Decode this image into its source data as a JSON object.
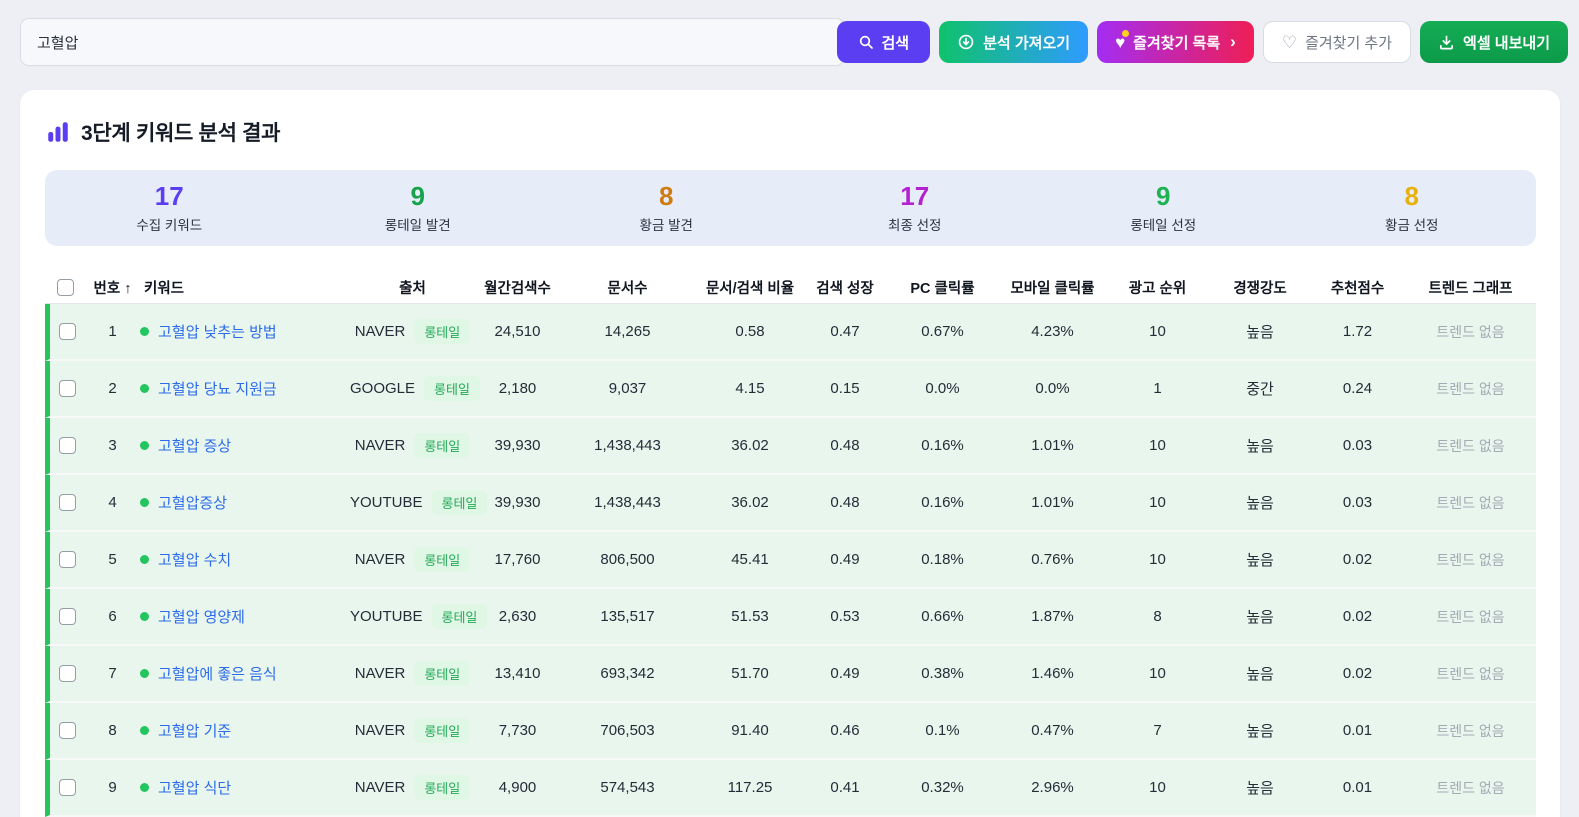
{
  "search": {
    "value": "고혈압"
  },
  "toolbar": {
    "search_label": "검색",
    "import_label": "분석 가져오기",
    "favorites_list_label": "즐겨찾기 목록",
    "favorites_list_chevron": "›",
    "favorites_add_label": "즐겨찾기 추가",
    "excel_label": "엑셀 내보내기"
  },
  "results": {
    "title": "3단계 키워드 분석 결과",
    "stats": [
      {
        "value": "17",
        "label": "수집 키워드",
        "color": "#5b3df2"
      },
      {
        "value": "9",
        "label": "롱테일 발견",
        "color": "#16a34a"
      },
      {
        "value": "8",
        "label": "황금 발견",
        "color": "#d07b12"
      },
      {
        "value": "17",
        "label": "최종 선정",
        "color": "#b321d1"
      },
      {
        "value": "9",
        "label": "롱테일 선정",
        "color": "#1eb254"
      },
      {
        "value": "8",
        "label": "황금 선정",
        "color": "#e7b00a"
      }
    ]
  },
  "table": {
    "headers": [
      "번호 ↑",
      "키워드",
      "출처",
      "월간검색수",
      "문서수",
      "문서/검색 비율",
      "검색 성장",
      "PC 클릭률",
      "모바일 클릭률",
      "광고 순위",
      "경쟁강도",
      "추천점수",
      "트렌드 그래프"
    ],
    "badge_label": "롱테일",
    "no_trend_label": "트렌드 없음",
    "rows": [
      {
        "no": "1",
        "keyword": "고혈압 낮추는 방법",
        "source": "NAVER",
        "monthly": "24,510",
        "docs": "14,265",
        "ratio": "0.58",
        "growth": "0.47",
        "pc_ctr": "0.67%",
        "mobile_ctr": "4.23%",
        "ad_rank": "10",
        "competition": "높음",
        "score": "1.72"
      },
      {
        "no": "2",
        "keyword": "고혈압 당뇨 지원금",
        "source": "GOOGLE",
        "monthly": "2,180",
        "docs": "9,037",
        "ratio": "4.15",
        "growth": "0.15",
        "pc_ctr": "0.0%",
        "mobile_ctr": "0.0%",
        "ad_rank": "1",
        "competition": "중간",
        "score": "0.24"
      },
      {
        "no": "3",
        "keyword": "고혈압 증상",
        "source": "NAVER",
        "monthly": "39,930",
        "docs": "1,438,443",
        "ratio": "36.02",
        "growth": "0.48",
        "pc_ctr": "0.16%",
        "mobile_ctr": "1.01%",
        "ad_rank": "10",
        "competition": "높음",
        "score": "0.03"
      },
      {
        "no": "4",
        "keyword": "고혈압증상",
        "source": "YOUTUBE",
        "monthly": "39,930",
        "docs": "1,438,443",
        "ratio": "36.02",
        "growth": "0.48",
        "pc_ctr": "0.16%",
        "mobile_ctr": "1.01%",
        "ad_rank": "10",
        "competition": "높음",
        "score": "0.03"
      },
      {
        "no": "5",
        "keyword": "고혈압 수치",
        "source": "NAVER",
        "monthly": "17,760",
        "docs": "806,500",
        "ratio": "45.41",
        "growth": "0.49",
        "pc_ctr": "0.18%",
        "mobile_ctr": "0.76%",
        "ad_rank": "10",
        "competition": "높음",
        "score": "0.02"
      },
      {
        "no": "6",
        "keyword": "고혈압 영양제",
        "source": "YOUTUBE",
        "monthly": "2,630",
        "docs": "135,517",
        "ratio": "51.53",
        "growth": "0.53",
        "pc_ctr": "0.66%",
        "mobile_ctr": "1.87%",
        "ad_rank": "8",
        "competition": "높음",
        "score": "0.02"
      },
      {
        "no": "7",
        "keyword": "고혈압에 좋은 음식",
        "source": "NAVER",
        "monthly": "13,410",
        "docs": "693,342",
        "ratio": "51.70",
        "growth": "0.49",
        "pc_ctr": "0.38%",
        "mobile_ctr": "1.46%",
        "ad_rank": "10",
        "competition": "높음",
        "score": "0.02"
      },
      {
        "no": "8",
        "keyword": "고혈압 기준",
        "source": "NAVER",
        "monthly": "7,730",
        "docs": "706,503",
        "ratio": "91.40",
        "growth": "0.46",
        "pc_ctr": "0.1%",
        "mobile_ctr": "0.47%",
        "ad_rank": "7",
        "competition": "높음",
        "score": "0.01"
      },
      {
        "no": "9",
        "keyword": "고혈압 식단",
        "source": "NAVER",
        "monthly": "4,900",
        "docs": "574,543",
        "ratio": "117.25",
        "growth": "0.41",
        "pc_ctr": "0.32%",
        "mobile_ctr": "2.96%",
        "ad_rank": "10",
        "competition": "높음",
        "score": "0.01"
      }
    ]
  }
}
